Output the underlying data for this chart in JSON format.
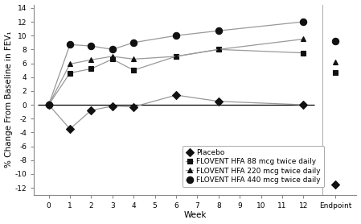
{
  "xlabel": "Week",
  "ylabel": "% Change From Baseline in FEV₁",
  "ylim": [
    -13,
    14.5
  ],
  "yticks": [
    -12,
    -10,
    -8,
    -6,
    -4,
    -2,
    0,
    2,
    4,
    6,
    8,
    10,
    12,
    14
  ],
  "weeks": [
    0,
    1,
    2,
    3,
    4,
    6,
    8,
    12
  ],
  "series": [
    {
      "label": "Placebo",
      "marker": "D",
      "markersize": 5,
      "values": [
        0,
        -3.5,
        -0.8,
        -0.2,
        -0.3,
        1.4,
        0.5,
        0.0
      ],
      "endpoint": -11.5
    },
    {
      "label": "FLOVENT HFA 88 mcg twice daily",
      "marker": "s",
      "markersize": 5,
      "values": [
        0,
        4.6,
        5.2,
        6.6,
        5.0,
        7.0,
        8.0,
        7.5
      ],
      "endpoint": 4.7
    },
    {
      "label": "FLOVENT HFA 220 mcg twice daily",
      "marker": "^",
      "markersize": 5,
      "values": [
        0,
        5.9,
        6.5,
        7.0,
        6.6,
        7.0,
        8.0,
        9.5
      ],
      "endpoint": 6.2
    },
    {
      "label": "FLOVENT HFA 440 mcg twice daily",
      "marker": "o",
      "markersize": 6,
      "values": [
        0,
        8.7,
        8.5,
        8.0,
        9.0,
        10.0,
        10.7,
        12.0
      ],
      "endpoint": 9.2
    }
  ],
  "line_color": "#999999",
  "marker_color": "#111111",
  "zero_line_color": "#000000",
  "background_color": "#ffffff",
  "tick_fontsize": 6.5,
  "axis_label_fontsize": 7.5,
  "legend_fontsize": 6.5
}
